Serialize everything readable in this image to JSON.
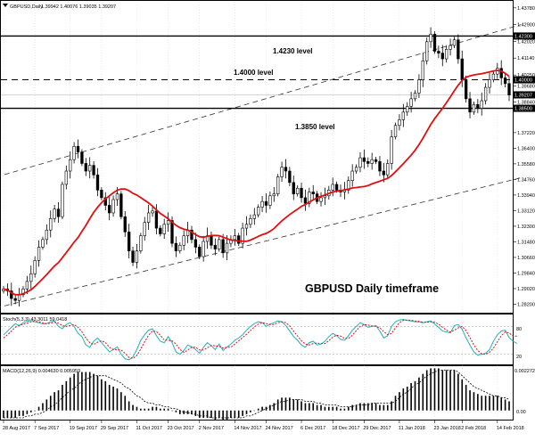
{
  "header": {
    "symbol_label": "GBPUSD,Daily",
    "ohlc": "1.39942 1.40076 1.39035 1.39207"
  },
  "colors": {
    "background": "#ffffff",
    "grid": "#c8c8c8",
    "axis_text": "#000000",
    "candle_up": "#ffffff",
    "candle_down": "#000000",
    "ma_line": "#e01010",
    "stoch_main": "#20b0c0",
    "stoch_signal": "#e01010",
    "macd_hist": "#000000",
    "macd_signal": "#000000",
    "price_tag_bg": "#000000",
    "price_tag_text": "#ffffff"
  },
  "chart_data": [
    {
      "type": "candlestick",
      "title": "GBPUSD Daily timeframe",
      "price_axis_ticks": [
        "1.43780",
        "1.42900",
        "1.42020",
        "1.41140",
        "1.40250",
        "1.39680",
        "1.38840",
        "1.37220",
        "1.36400",
        "1.35580",
        "1.34760",
        "1.33940",
        "1.33120",
        "1.32300",
        "1.31480",
        "1.30660",
        "1.29840",
        "1.29020",
        "1.28200"
      ],
      "ylim": [
        1.278,
        1.441
      ],
      "date_axis_ticks": [
        "28 Aug 2017",
        "7 Sep 2017",
        "19 Sep 2017",
        "29 Sep 2017",
        "11 Oct 2017",
        "23 Oct 2017",
        "2 Nov 2017",
        "14 Nov 2017",
        "24 Nov 2017",
        "6 Dec 2017",
        "18 Dec 2017",
        "29 Dec 2017",
        "11 Jan 2018",
        "23 Jan 2018",
        "2 Feb 2018",
        "14 Feb 2018"
      ],
      "date_axis_index": [
        0,
        8,
        17,
        25,
        34,
        42,
        50,
        59,
        67,
        76,
        84,
        92,
        101,
        110,
        117,
        126
      ],
      "candles_close": [
        1.29,
        1.289,
        1.285,
        1.284,
        1.287,
        1.29,
        1.294,
        1.298,
        1.305,
        1.312,
        1.316,
        1.321,
        1.327,
        1.332,
        1.328,
        1.345,
        1.352,
        1.358,
        1.365,
        1.362,
        1.356,
        1.352,
        1.355,
        1.35,
        1.342,
        1.338,
        1.334,
        1.33,
        1.337,
        1.34,
        1.328,
        1.32,
        1.31,
        1.304,
        1.31,
        1.318,
        1.325,
        1.33,
        1.331,
        1.322,
        1.319,
        1.324,
        1.326,
        1.314,
        1.31,
        1.313,
        1.318,
        1.321,
        1.316,
        1.312,
        1.307,
        1.315,
        1.318,
        1.313,
        1.311,
        1.316,
        1.309,
        1.314,
        1.316,
        1.318,
        1.314,
        1.322,
        1.324,
        1.327,
        1.329,
        1.333,
        1.336,
        1.334,
        1.339,
        1.34,
        1.349,
        1.354,
        1.352,
        1.346,
        1.34,
        1.343,
        1.338,
        1.335,
        1.341,
        1.34,
        1.336,
        1.338,
        1.339,
        1.342,
        1.345,
        1.342,
        1.341,
        1.342,
        1.347,
        1.352,
        1.354,
        1.359,
        1.357,
        1.356,
        1.358,
        1.357,
        1.352,
        1.35,
        1.356,
        1.37,
        1.376,
        1.379,
        1.383,
        1.386,
        1.39,
        1.393,
        1.4,
        1.41,
        1.42,
        1.424,
        1.415,
        1.414,
        1.411,
        1.416,
        1.418,
        1.421,
        1.411,
        1.4,
        1.39,
        1.383,
        1.387,
        1.385,
        1.389,
        1.396,
        1.4,
        1.403,
        1.406,
        1.401,
        1.398,
        1.392
      ],
      "ma_period_label": "",
      "horizontal_levels": [
        {
          "price": 1.423,
          "label": "1.4230 level",
          "tag": "1.42300",
          "style": "solid"
        },
        {
          "price": 1.4,
          "label": "1.4000 level",
          "tag": "1.40000",
          "style": "dashed"
        },
        {
          "price": 1.385,
          "label": "1.3850 level",
          "tag": "1.38500",
          "style": "solid"
        }
      ],
      "current_price_tag": "1.39207",
      "channel_lines": [
        {
          "from": [
            0,
            1.35
          ],
          "to": [
            122,
            1.423
          ]
        },
        {
          "from": [
            0,
            1.281
          ],
          "to": [
            135,
            1.35
          ]
        }
      ],
      "grid": true
    },
    {
      "type": "line",
      "title": "Stoch(5,3,3) 43.3011 59.0418",
      "ylim": [
        0,
        100
      ],
      "ticks": [
        "80",
        "20"
      ],
      "series": [
        {
          "role": "main",
          "values": [
            62,
            70,
            78,
            86,
            82,
            88,
            91,
            93,
            90,
            88,
            85,
            86,
            90,
            92,
            80,
            75,
            84,
            88,
            80,
            65,
            58,
            40,
            35,
            48,
            55,
            45,
            35,
            25,
            30,
            36,
            20,
            10,
            8,
            14,
            30,
            50,
            62,
            72,
            75,
            60,
            48,
            45,
            58,
            45,
            25,
            20,
            28,
            40,
            36,
            30,
            22,
            35,
            45,
            38,
            30,
            42,
            28,
            35,
            42,
            50,
            55,
            62,
            72,
            80,
            86,
            90,
            88,
            80,
            85,
            88,
            92,
            90,
            82,
            70,
            58,
            50,
            40,
            35,
            45,
            48,
            40,
            42,
            48,
            58,
            65,
            60,
            52,
            50,
            60,
            72,
            80,
            88,
            84,
            78,
            80,
            82,
            70,
            55,
            60,
            80,
            90,
            94,
            95,
            93,
            92,
            90,
            90,
            88,
            90,
            92,
            85,
            78,
            70,
            68,
            66,
            82,
            84,
            74,
            55,
            40,
            25,
            18,
            20,
            22,
            30,
            48,
            62,
            70,
            72,
            56,
            48,
            43
          ]
        },
        {
          "role": "signal",
          "values": [
            55,
            62,
            70,
            78,
            82,
            85,
            87,
            90,
            91,
            90,
            88,
            86,
            87,
            89,
            87,
            82,
            80,
            82,
            84,
            78,
            68,
            55,
            45,
            41,
            46,
            49,
            45,
            35,
            30,
            30,
            29,
            22,
            13,
            11,
            17,
            31,
            47,
            61,
            70,
            69,
            61,
            51,
            50,
            49,
            42,
            30,
            24,
            29,
            35,
            35,
            29,
            29,
            34,
            39,
            38,
            37,
            33,
            35,
            35,
            42,
            49,
            56,
            63,
            71,
            79,
            85,
            88,
            86,
            84,
            84,
            88,
            90,
            88,
            81,
            70,
            59,
            49,
            42,
            40,
            43,
            44,
            43,
            43,
            49,
            57,
            61,
            59,
            54,
            54,
            61,
            71,
            80,
            84,
            83,
            81,
            80,
            77,
            69,
            62,
            65,
            77,
            88,
            93,
            94,
            93,
            92,
            91,
            89,
            89,
            90,
            89,
            85,
            78,
            72,
            68,
            72,
            77,
            80,
            71,
            56,
            40,
            28,
            21,
            20,
            24,
            33,
            47,
            60,
            68,
            66,
            59,
            59
          ]
        }
      ]
    },
    {
      "type": "bar",
      "title": "MACD(12,26,9) 0.004630 0.005959",
      "ylim": [
        -0.00045,
        0.002272
      ],
      "ticks": [
        "0.002272",
        "0.00"
      ],
      "series": [
        {
          "role": "histogram",
          "values": [
            -0.0004,
            -0.0004,
            -0.0004,
            -0.0004,
            -0.0003,
            -0.0003,
            -0.0002,
            -0.0001,
            0.0,
            0.0002,
            0.0004,
            0.0006,
            0.0008,
            0.001,
            0.0011,
            0.0014,
            0.0016,
            0.0018,
            0.002,
            0.0021,
            0.0021,
            0.0021,
            0.0021,
            0.002,
            0.0019,
            0.0017,
            0.0016,
            0.0014,
            0.0013,
            0.0012,
            0.001,
            0.0008,
            0.0005,
            0.0003,
            0.0002,
            0.0001,
            0.0001,
            0.0001,
            0.0002,
            0.0002,
            0.0001,
            0.0001,
            0.0001,
            0.0,
            -0.0001,
            -0.0002,
            -0.0002,
            -0.0002,
            -0.0002,
            -0.0003,
            -0.0004,
            -0.0004,
            -0.0004,
            -0.0004,
            -0.0005,
            -0.0004,
            -0.0005,
            -0.0005,
            -0.0004,
            -0.0004,
            -0.0004,
            -0.0003,
            -0.0002,
            -0.0001,
            0.0,
            0.0001,
            0.0002,
            0.0002,
            0.0003,
            0.0004,
            0.0006,
            0.0007,
            0.0007,
            0.0007,
            0.0006,
            0.0006,
            0.0005,
            0.0004,
            0.0004,
            0.0004,
            0.0003,
            0.0003,
            0.0002,
            0.0002,
            0.0002,
            0.0002,
            0.0001,
            0.0001,
            0.0002,
            0.0003,
            0.0003,
            0.0004,
            0.0004,
            0.0004,
            0.0004,
            0.0004,
            0.0003,
            0.0003,
            0.0003,
            0.0005,
            0.0008,
            0.001,
            0.0012,
            0.0013,
            0.0015,
            0.0016,
            0.0018,
            0.002,
            0.0022,
            0.0023,
            0.0023,
            0.0023,
            0.0022,
            0.0022,
            0.0022,
            0.0022,
            0.002,
            0.0017,
            0.0014,
            0.0011,
            0.001,
            0.0009,
            0.0008,
            0.0008,
            0.0008,
            0.0008,
            0.0008,
            0.0007,
            0.0006,
            0.0005
          ]
        },
        {
          "role": "signal",
          "values": [
            -0.0004,
            -0.0004,
            -0.0004,
            -0.0004,
            -0.0004,
            -0.0004,
            -0.0003,
            -0.0003,
            -0.0002,
            -0.0002,
            -0.0001,
            0.0,
            0.0002,
            0.0003,
            0.0005,
            0.0007,
            0.0009,
            0.0011,
            0.0012,
            0.0014,
            0.0016,
            0.0017,
            0.0018,
            0.0019,
            0.0019,
            0.0019,
            0.0019,
            0.0018,
            0.0017,
            0.0016,
            0.0015,
            0.0013,
            0.0012,
            0.001,
            0.0008,
            0.0007,
            0.0005,
            0.0004,
            0.0004,
            0.0003,
            0.0003,
            0.0002,
            0.0002,
            0.0001,
            0.0001,
            0.0,
            -0.0001,
            -0.0001,
            -0.0002,
            -0.0002,
            -0.0003,
            -0.0003,
            -0.0003,
            -0.0004,
            -0.0004,
            -0.0004,
            -0.0004,
            -0.0004,
            -0.0004,
            -0.0004,
            -0.0004,
            -0.0004,
            -0.0003,
            -0.0003,
            -0.0002,
            -0.0001,
            0.0,
            0.0001,
            0.0002,
            0.0003,
            0.0004,
            0.0005,
            0.0005,
            0.0006,
            0.0006,
            0.0006,
            0.0006,
            0.0005,
            0.0005,
            0.0005,
            0.0004,
            0.0004,
            0.0003,
            0.0003,
            0.0003,
            0.0003,
            0.0002,
            0.0002,
            0.0002,
            0.0002,
            0.0003,
            0.0003,
            0.0003,
            0.0003,
            0.0004,
            0.0004,
            0.0004,
            0.0004,
            0.0004,
            0.0004,
            0.0005,
            0.0007,
            0.0009,
            0.001,
            0.0012,
            0.0014,
            0.0015,
            0.0017,
            0.0019,
            0.002,
            0.0021,
            0.0022,
            0.0022,
            0.0022,
            0.0022,
            0.0022,
            0.0021,
            0.0019,
            0.0017,
            0.0015,
            0.0013,
            0.0012,
            0.0011,
            0.001,
            0.0009,
            0.0008,
            0.0008,
            0.0007,
            0.0007,
            0.0006
          ]
        }
      ]
    }
  ]
}
